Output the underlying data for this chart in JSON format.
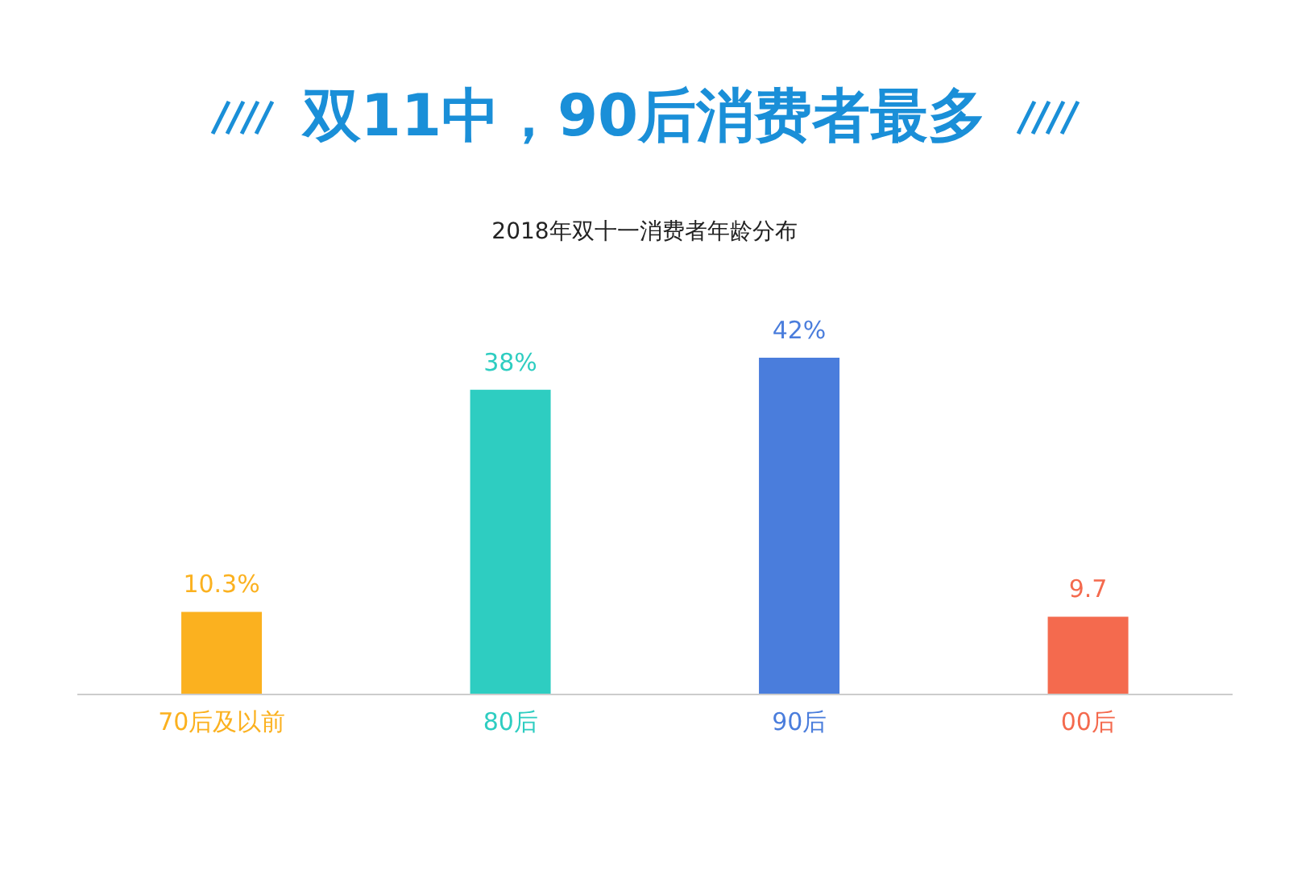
{
  "chart_data": {
    "type": "bar",
    "title": "双11中，90后消费者最多",
    "subtitle": "2018年双十一消费者年龄分布",
    "categories": [
      "70后及以前",
      "80后",
      "90后",
      "00后"
    ],
    "values": [
      10.3,
      38,
      42,
      9.7
    ],
    "value_labels": [
      "10.3%",
      "38%",
      "42%",
      "9.7"
    ],
    "colors": [
      "#fbb11f",
      "#2ecdc1",
      "#4a7ddc",
      "#f46a4e"
    ]
  }
}
